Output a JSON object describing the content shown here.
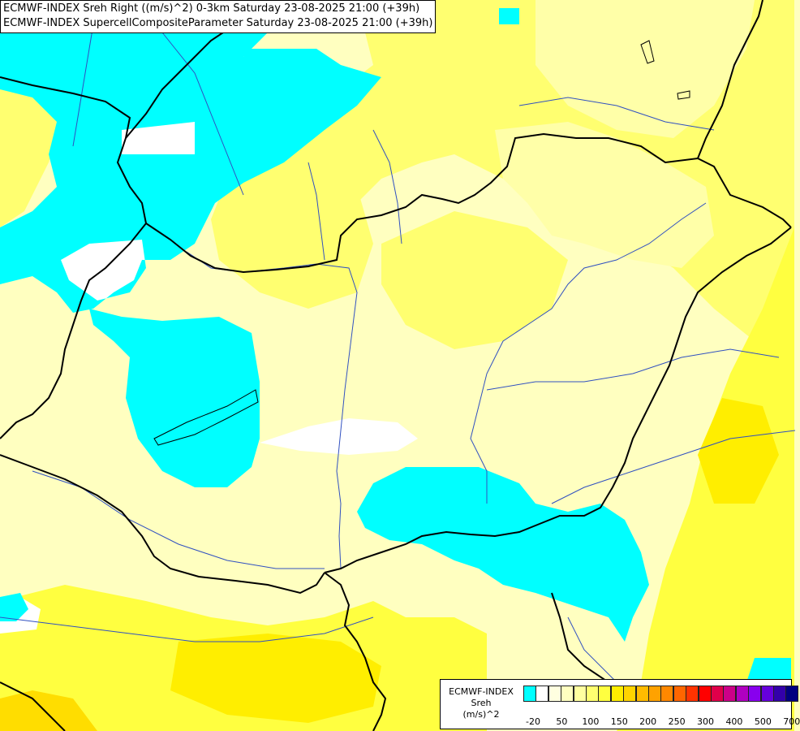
{
  "titles": {
    "line1": "ECMWF-INDEX Sreh Right ((m/s)^2) 0-3km Saturday 23-08-2025 21:00 (+39h)",
    "line2": "ECMWF-INDEX SupercellCompositeParameter Saturday 23-08-2025 21:00 (+39h)"
  },
  "legend": {
    "title_line1": "ECMWF-INDEX",
    "title_line2": "Sreh",
    "title_line3": "(m/s)^2",
    "swatch_colors": [
      "#00ffff",
      "#ffffff",
      "#ffffe0",
      "#ffffc0",
      "#ffffa0",
      "#ffff70",
      "#ffff40",
      "#ffee00",
      "#ffd400",
      "#ffbb00",
      "#ffa200",
      "#ff8800",
      "#ff6600",
      "#ff3300",
      "#ff0000",
      "#e0004a",
      "#cc0088",
      "#b000c0",
      "#8800ee",
      "#6600dd",
      "#3300aa",
      "#000080"
    ],
    "ticks": [
      {
        "label": "-20",
        "index": 0
      },
      {
        "label": "50",
        "index": 2
      },
      {
        "label": "100",
        "index": 4
      },
      {
        "label": "150",
        "index": 6
      },
      {
        "label": "200",
        "index": 8
      },
      {
        "label": "250",
        "index": 10
      },
      {
        "label": "300",
        "index": 12
      },
      {
        "label": "400",
        "index": 14
      },
      {
        "label": "500",
        "index": 16
      },
      {
        "label": "700",
        "index": 18
      }
    ]
  },
  "colors": {
    "background": "#ffffc0",
    "pale": "#ffffa8",
    "yellow_light": "#ffff70",
    "yellow": "#ffff40",
    "yellow_strong": "#ffee00",
    "cyan": "#00ffff",
    "white": "#ffffff",
    "border_line": "#000000",
    "river_line": "#3050c0"
  }
}
